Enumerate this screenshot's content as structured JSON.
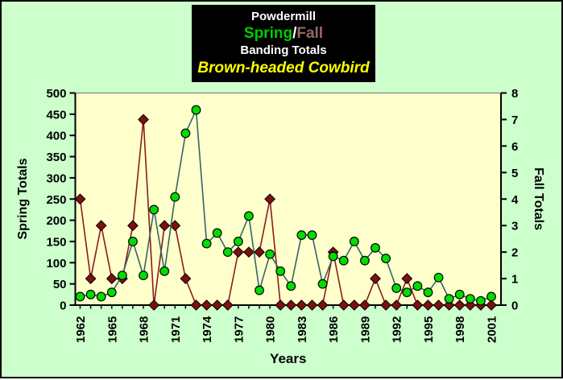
{
  "canvas": {
    "bg": "#CCFFCC",
    "plot_bg": "#FFFFCC",
    "border_color": "#000000",
    "plot_top_line_color": "#888888"
  },
  "title_box": {
    "bg": "#000000",
    "line1": "Powdermill",
    "spring_label": "Spring",
    "separator": "/",
    "fall_label": "Fall",
    "line3": "Banding Totals",
    "line4": "Brown-headed Cowbird",
    "colors": {
      "line1": "#FFFFFF",
      "spring": "#00CC00",
      "separator": "#FFFFFF",
      "fall": "#996666",
      "line3": "#FFFFFF",
      "line4": "#FFFF00"
    }
  },
  "chart_data": {
    "type": "line",
    "x": [
      1962,
      1963,
      1964,
      1965,
      1966,
      1967,
      1968,
      1969,
      1970,
      1971,
      1972,
      1973,
      1974,
      1975,
      1976,
      1977,
      1978,
      1979,
      1980,
      1981,
      1982,
      1983,
      1984,
      1985,
      1986,
      1987,
      1988,
      1989,
      1990,
      1991,
      1992,
      1993,
      1994,
      1995,
      1996,
      1997,
      1998,
      1999,
      2000,
      2001
    ],
    "x_tick_label_every": 3,
    "xlabel": "Years",
    "left_axis": {
      "label": "Spring Totals",
      "min": 0,
      "max": 500,
      "step": 50
    },
    "right_axis": {
      "label": "Fall Totals",
      "min": 0,
      "max": 8,
      "step": 1
    },
    "grid": false,
    "legend": "none",
    "series": [
      {
        "name": "Fall",
        "axis": "right",
        "marker": "diamond",
        "marker_color": "#7E1010",
        "marker_edge": "#000000",
        "line_color": "#8B1A1A",
        "values": [
          4,
          1,
          3,
          1,
          1,
          3,
          7,
          0,
          3,
          3,
          1,
          0,
          0,
          0,
          0,
          2,
          2,
          2,
          4,
          0,
          0,
          0,
          0,
          0,
          2,
          0,
          0,
          0,
          1,
          0,
          0,
          1,
          0,
          0,
          0,
          0,
          0,
          0,
          0,
          0
        ]
      },
      {
        "name": "Spring",
        "axis": "left",
        "marker": "circle",
        "marker_color": "#00DD00",
        "marker_edge": "#000000",
        "line_color": "#336666",
        "values": [
          20,
          25,
          20,
          30,
          70,
          150,
          70,
          225,
          80,
          255,
          405,
          460,
          145,
          170,
          125,
          150,
          210,
          35,
          120,
          80,
          45,
          165,
          165,
          50,
          115,
          105,
          150,
          105,
          135,
          110,
          40,
          30,
          45,
          30,
          65,
          15,
          25,
          15,
          10,
          20
        ]
      }
    ]
  }
}
